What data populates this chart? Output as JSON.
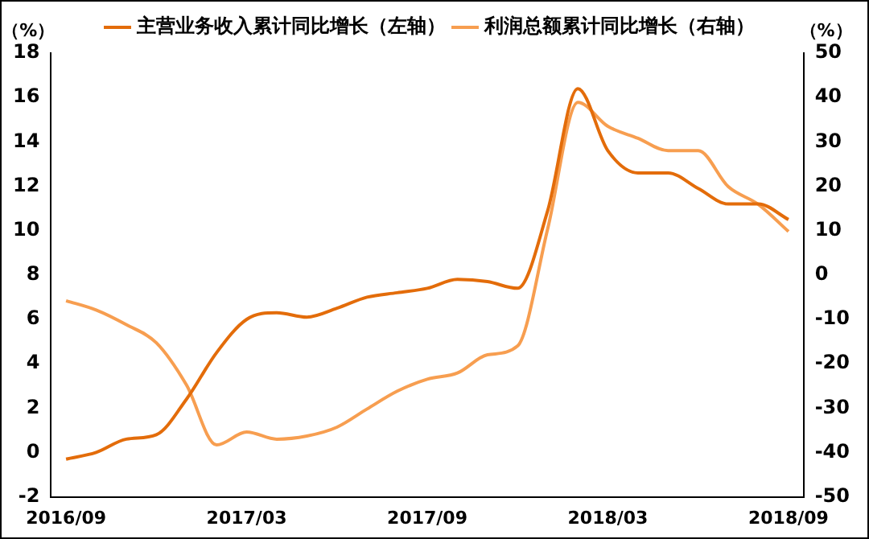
{
  "chart_data": {
    "type": "line",
    "ylabel": "（%）",
    "y2label": "（%）",
    "categories": [
      "2016/09",
      null,
      null,
      null,
      null,
      null,
      "2017/03",
      null,
      null,
      null,
      null,
      null,
      "2017/09",
      null,
      null,
      null,
      null,
      null,
      "2018/03",
      null,
      null,
      null,
      null,
      null,
      "2018/09"
    ],
    "series": [
      {
        "name": "主营业务收入累计同比增长（左轴）",
        "color": "#e36c0a",
        "values": [
          -0.3,
          0.0,
          0.6,
          0.8,
          2.4,
          4.5,
          6.0,
          6.3,
          6.1,
          6.5,
          7.0,
          7.2,
          7.4,
          7.8,
          7.7,
          7.4,
          10.9,
          16.4,
          13.6,
          12.6,
          12.6,
          11.9,
          11.2,
          11.2,
          10.5
        ]
      },
      {
        "name": "利润总额累计同比增长（右轴）",
        "color": "#f79e50",
        "axis": "y2",
        "values": [
          -5.8,
          -7.9,
          -11.2,
          -15.3,
          -24.8,
          -38.3,
          -35.4,
          -37,
          -36.3,
          -34.3,
          -30.2,
          -26.2,
          -23.5,
          -22.1,
          -18,
          -16,
          10.4,
          38.9,
          33.5,
          30.8,
          28,
          28,
          19.9,
          15.9,
          9.8
        ]
      }
    ],
    "ylim": [
      -2,
      18
    ],
    "yticks": [
      -2,
      0,
      2,
      4,
      6,
      8,
      10,
      12,
      14,
      16,
      18
    ],
    "y2lim": [
      -50,
      50
    ],
    "y2ticks": [
      -50,
      -40,
      -30,
      -20,
      -10,
      0,
      10,
      20,
      30,
      40,
      50
    ],
    "grid": false,
    "legend": "top",
    "marker": "none",
    "line_style": "solid"
  }
}
